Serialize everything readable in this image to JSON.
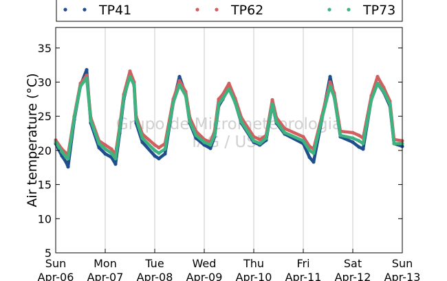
{
  "chart_data": {
    "type": "line",
    "title": "",
    "ylabel": "Air temperature (°C)",
    "xlabel": "",
    "ylim": [
      5,
      38
    ],
    "yticks": [
      5,
      10,
      15,
      20,
      25,
      30,
      35
    ],
    "xlim": [
      "Apr-06",
      "Apr-13"
    ],
    "grid": "vertical",
    "legend_placement": "top, outside",
    "x_ticks": [
      {
        "day": "Sun",
        "date": "Apr-06"
      },
      {
        "day": "Mon",
        "date": "Apr-07"
      },
      {
        "day": "Tue",
        "date": "Apr-08"
      },
      {
        "day": "Wed",
        "date": "Apr-09"
      },
      {
        "day": "Thu",
        "date": "Apr-10"
      },
      {
        "day": "Fri",
        "date": "Apr-11"
      },
      {
        "day": "Sat",
        "date": "Apr-12"
      },
      {
        "day": "Sun",
        "date": "Apr-13"
      }
    ],
    "watermark": [
      "Grupo de Micrometeorologia",
      "IAG / USP"
    ],
    "series": [
      {
        "name": "TP41",
        "color": "#1f4e8c",
        "points": [
          [
            "Apr-06 00:00",
            21.0
          ],
          [
            "Apr-06 03:00",
            19.2
          ],
          [
            "Apr-06 05:00",
            18.3
          ],
          [
            "Apr-06 06:00",
            17.6
          ],
          [
            "Apr-06 09:00",
            24.5
          ],
          [
            "Apr-06 12:00",
            29.5
          ],
          [
            "Apr-06 15:00",
            31.8
          ],
          [
            "Apr-06 17:00",
            24.0
          ],
          [
            "Apr-06 21:00",
            20.4
          ],
          [
            "Apr-07 00:00",
            19.5
          ],
          [
            "Apr-07 03:00",
            19.0
          ],
          [
            "Apr-07 05:00",
            18.0
          ],
          [
            "Apr-07 07:00",
            22.5
          ],
          [
            "Apr-07 09:00",
            27.5
          ],
          [
            "Apr-07 12:00",
            31.2
          ],
          [
            "Apr-07 14:00",
            29.5
          ],
          [
            "Apr-07 15:00",
            24.0
          ],
          [
            "Apr-07 18:00",
            21.2
          ],
          [
            "Apr-08 00:00",
            19.2
          ],
          [
            "Apr-08 02:00",
            18.8
          ],
          [
            "Apr-08 05:00",
            19.5
          ],
          [
            "Apr-08 09:00",
            27.0
          ],
          [
            "Apr-08 12:00",
            30.8
          ],
          [
            "Apr-08 15:00",
            28.2
          ],
          [
            "Apr-08 17:00",
            24.0
          ],
          [
            "Apr-08 20:00",
            21.8
          ],
          [
            "Apr-09 00:00",
            20.8
          ],
          [
            "Apr-09 03:00",
            20.3
          ],
          [
            "Apr-09 05:00",
            22.0
          ],
          [
            "Apr-09 07:00",
            26.5
          ],
          [
            "Apr-09 09:00",
            27.5
          ],
          [
            "Apr-09 12:00",
            29.2
          ],
          [
            "Apr-09 15:00",
            27.0
          ],
          [
            "Apr-09 18:00",
            24.0
          ],
          [
            "Apr-10 00:00",
            21.2
          ],
          [
            "Apr-10 03:00",
            20.8
          ],
          [
            "Apr-10 06:00",
            21.5
          ],
          [
            "Apr-10 09:00",
            26.8
          ],
          [
            "Apr-10 11:00",
            24.0
          ],
          [
            "Apr-10 15:00",
            22.4
          ],
          [
            "Apr-11 00:00",
            21.0
          ],
          [
            "Apr-11 03:00",
            19.0
          ],
          [
            "Apr-11 05:00",
            18.3
          ],
          [
            "Apr-11 09:00",
            24.5
          ],
          [
            "Apr-11 13:00",
            30.8
          ],
          [
            "Apr-11 15:00",
            28.0
          ],
          [
            "Apr-11 18:00",
            22.0
          ],
          [
            "Apr-12 00:00",
            21.2
          ],
          [
            "Apr-12 03:00",
            20.5
          ],
          [
            "Apr-12 05:00",
            20.2
          ],
          [
            "Apr-12 09:00",
            27.5
          ],
          [
            "Apr-12 12:00",
            29.8
          ],
          [
            "Apr-12 15:00",
            28.5
          ],
          [
            "Apr-12 18:00",
            26.5
          ],
          [
            "Apr-12 20:00",
            21.0
          ],
          [
            "Apr-13 00:00",
            20.6
          ]
        ]
      },
      {
        "name": "TP62",
        "color": "#d05f5f",
        "points": [
          [
            "Apr-06 00:00",
            21.5
          ],
          [
            "Apr-06 03:00",
            20.2
          ],
          [
            "Apr-06 05:00",
            19.6
          ],
          [
            "Apr-06 06:00",
            19.4
          ],
          [
            "Apr-06 09:00",
            25.0
          ],
          [
            "Apr-06 12:00",
            29.8
          ],
          [
            "Apr-06 15:00",
            31.0
          ],
          [
            "Apr-06 17:00",
            24.8
          ],
          [
            "Apr-06 21:00",
            21.4
          ],
          [
            "Apr-07 00:00",
            20.8
          ],
          [
            "Apr-07 03:00",
            20.2
          ],
          [
            "Apr-07 05:00",
            19.4
          ],
          [
            "Apr-07 07:00",
            23.5
          ],
          [
            "Apr-07 09:00",
            28.2
          ],
          [
            "Apr-07 12:00",
            31.6
          ],
          [
            "Apr-07 14:00",
            30.0
          ],
          [
            "Apr-07 15:00",
            25.0
          ],
          [
            "Apr-07 18:00",
            22.4
          ],
          [
            "Apr-08 00:00",
            20.8
          ],
          [
            "Apr-08 02:00",
            20.4
          ],
          [
            "Apr-08 05:00",
            21.0
          ],
          [
            "Apr-08 09:00",
            27.5
          ],
          [
            "Apr-08 12:00",
            30.2
          ],
          [
            "Apr-08 15:00",
            28.6
          ],
          [
            "Apr-08 17:00",
            24.8
          ],
          [
            "Apr-08 20:00",
            22.8
          ],
          [
            "Apr-09 00:00",
            21.6
          ],
          [
            "Apr-09 03:00",
            21.2
          ],
          [
            "Apr-09 05:00",
            22.8
          ],
          [
            "Apr-09 07:00",
            27.5
          ],
          [
            "Apr-09 09:00",
            28.2
          ],
          [
            "Apr-09 12:00",
            29.8
          ],
          [
            "Apr-09 15:00",
            27.6
          ],
          [
            "Apr-09 18:00",
            24.8
          ],
          [
            "Apr-10 00:00",
            22.0
          ],
          [
            "Apr-10 03:00",
            21.6
          ],
          [
            "Apr-10 06:00",
            22.2
          ],
          [
            "Apr-10 09:00",
            27.4
          ],
          [
            "Apr-10 11:00",
            24.8
          ],
          [
            "Apr-10 15:00",
            23.2
          ],
          [
            "Apr-11 00:00",
            22.0
          ],
          [
            "Apr-11 03:00",
            20.6
          ],
          [
            "Apr-11 05:00",
            20.2
          ],
          [
            "Apr-11 09:00",
            25.0
          ],
          [
            "Apr-11 13:00",
            30.0
          ],
          [
            "Apr-11 15:00",
            28.4
          ],
          [
            "Apr-11 18:00",
            22.8
          ],
          [
            "Apr-12 00:00",
            22.6
          ],
          [
            "Apr-12 03:00",
            22.2
          ],
          [
            "Apr-12 05:00",
            21.8
          ],
          [
            "Apr-12 09:00",
            28.0
          ],
          [
            "Apr-12 12:00",
            30.8
          ],
          [
            "Apr-12 15:00",
            29.2
          ],
          [
            "Apr-12 18:00",
            27.2
          ],
          [
            "Apr-12 20:00",
            21.6
          ],
          [
            "Apr-13 00:00",
            21.4
          ]
        ]
      },
      {
        "name": "TP73",
        "color": "#3fb37f",
        "points": [
          [
            "Apr-06 00:00",
            21.2
          ],
          [
            "Apr-06 03:00",
            19.8
          ],
          [
            "Apr-06 05:00",
            19.0
          ],
          [
            "Apr-06 06:00",
            18.8
          ],
          [
            "Apr-06 09:00",
            24.8
          ],
          [
            "Apr-06 12:00",
            29.4
          ],
          [
            "Apr-06 15:00",
            30.6
          ],
          [
            "Apr-06 17:00",
            24.4
          ],
          [
            "Apr-06 21:00",
            21.0
          ],
          [
            "Apr-07 00:00",
            20.2
          ],
          [
            "Apr-07 03:00",
            19.6
          ],
          [
            "Apr-07 05:00",
            18.8
          ],
          [
            "Apr-07 07:00",
            23.0
          ],
          [
            "Apr-07 09:00",
            27.8
          ],
          [
            "Apr-07 12:00",
            30.8
          ],
          [
            "Apr-07 14:00",
            29.6
          ],
          [
            "Apr-07 15:00",
            24.6
          ],
          [
            "Apr-07 18:00",
            21.8
          ],
          [
            "Apr-08 00:00",
            20.0
          ],
          [
            "Apr-08 02:00",
            19.6
          ],
          [
            "Apr-08 05:00",
            20.2
          ],
          [
            "Apr-08 09:00",
            27.0
          ],
          [
            "Apr-08 12:00",
            29.6
          ],
          [
            "Apr-08 15:00",
            28.0
          ],
          [
            "Apr-08 17:00",
            24.2
          ],
          [
            "Apr-08 20:00",
            22.2
          ],
          [
            "Apr-09 00:00",
            21.2
          ],
          [
            "Apr-09 03:00",
            20.8
          ],
          [
            "Apr-09 05:00",
            22.2
          ],
          [
            "Apr-09 07:00",
            26.8
          ],
          [
            "Apr-09 09:00",
            27.6
          ],
          [
            "Apr-09 12:00",
            29.0
          ],
          [
            "Apr-09 15:00",
            27.0
          ],
          [
            "Apr-09 18:00",
            24.2
          ],
          [
            "Apr-10 00:00",
            21.4
          ],
          [
            "Apr-10 03:00",
            21.0
          ],
          [
            "Apr-10 06:00",
            21.8
          ],
          [
            "Apr-10 09:00",
            26.8
          ],
          [
            "Apr-10 11:00",
            24.2
          ],
          [
            "Apr-10 15:00",
            22.6
          ],
          [
            "Apr-11 00:00",
            21.4
          ],
          [
            "Apr-11 03:00",
            20.0
          ],
          [
            "Apr-11 05:00",
            19.6
          ],
          [
            "Apr-11 09:00",
            24.6
          ],
          [
            "Apr-11 13:00",
            29.4
          ],
          [
            "Apr-11 15:00",
            27.8
          ],
          [
            "Apr-11 18:00",
            22.2
          ],
          [
            "Apr-12 00:00",
            21.8
          ],
          [
            "Apr-12 03:00",
            21.4
          ],
          [
            "Apr-12 05:00",
            21.0
          ],
          [
            "Apr-12 09:00",
            27.4
          ],
          [
            "Apr-12 12:00",
            29.8
          ],
          [
            "Apr-12 15:00",
            28.6
          ],
          [
            "Apr-12 18:00",
            26.8
          ],
          [
            "Apr-12 20:00",
            21.0
          ],
          [
            "Apr-13 00:00",
            21.0
          ]
        ]
      }
    ]
  }
}
